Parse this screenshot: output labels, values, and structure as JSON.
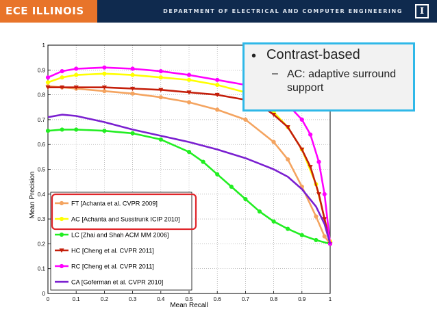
{
  "banner": {
    "logo_text": "ECE ILLINOIS",
    "department": "DEPARTMENT OF ELECTRICAL AND COMPUTER ENGINEERING",
    "mark": "I",
    "brand_color": "#0f2a4e",
    "accent_color": "#e8742a"
  },
  "callout": {
    "bullet": "•",
    "heading": "Contrast-based",
    "sub_dash": "–",
    "sub_text": "AC: adaptive surround support",
    "border_color": "#2fb8e8"
  },
  "chart_data": {
    "type": "line",
    "xlabel": "Mean Recall",
    "ylabel": "Mean Precision",
    "xlim": [
      0,
      1
    ],
    "ylim": [
      0,
      1
    ],
    "xticks": [
      "0",
      "0.1",
      "0.2",
      "0.3",
      "0.4",
      "0.5",
      "0.6",
      "0.7",
      "0.8",
      "0.9",
      "1"
    ],
    "yticks": [
      "0",
      "0.1",
      "0.2",
      "0.3",
      "0.4",
      "0.5",
      "0.6",
      "0.7",
      "0.8",
      "0.9",
      "1"
    ],
    "grid": true,
    "legend_position": "bottom-left",
    "legend_highlight_color": "#e0252a",
    "series": [
      {
        "name": "FT [Achanta et al. CVPR 2009]",
        "color": "#f4a460",
        "marker": "circle",
        "x": [
          0.0,
          0.05,
          0.1,
          0.2,
          0.3,
          0.4,
          0.5,
          0.6,
          0.7,
          0.8,
          0.85,
          0.9,
          0.95,
          0.98,
          1.0
        ],
        "y": [
          0.835,
          0.83,
          0.825,
          0.815,
          0.805,
          0.79,
          0.77,
          0.74,
          0.7,
          0.61,
          0.54,
          0.43,
          0.31,
          0.23,
          0.2
        ]
      },
      {
        "name": "AC [Achanta and Susstrunk ICIP 2010]",
        "color": "#ffff00",
        "marker": "circle",
        "x": [
          0.0,
          0.05,
          0.1,
          0.2,
          0.3,
          0.4,
          0.5,
          0.6,
          0.7,
          0.75,
          0.8,
          0.85,
          0.9,
          0.95,
          1.0
        ],
        "y": [
          0.85,
          0.87,
          0.88,
          0.885,
          0.88,
          0.87,
          0.86,
          0.84,
          0.81,
          0.78,
          0.73,
          0.67,
          0.58,
          0.44,
          0.21
        ]
      },
      {
        "name": "LC [Zhai and Shah ACM MM 2006]",
        "color": "#22ee22",
        "marker": "circle",
        "x": [
          0.0,
          0.05,
          0.1,
          0.2,
          0.3,
          0.4,
          0.5,
          0.55,
          0.6,
          0.65,
          0.7,
          0.75,
          0.8,
          0.85,
          0.9,
          0.95,
          1.0
        ],
        "y": [
          0.655,
          0.66,
          0.66,
          0.655,
          0.645,
          0.62,
          0.57,
          0.53,
          0.48,
          0.43,
          0.38,
          0.33,
          0.29,
          0.26,
          0.235,
          0.215,
          0.2
        ]
      },
      {
        "name": "HC [Cheng et al. CVPR 2011]",
        "color": "#c41e0a",
        "marker": "triangle",
        "x": [
          0.0,
          0.05,
          0.1,
          0.2,
          0.3,
          0.4,
          0.5,
          0.6,
          0.7,
          0.75,
          0.8,
          0.85,
          0.9,
          0.93,
          0.96,
          0.98,
          1.0
        ],
        "y": [
          0.83,
          0.83,
          0.83,
          0.83,
          0.825,
          0.82,
          0.81,
          0.8,
          0.78,
          0.76,
          0.72,
          0.67,
          0.58,
          0.51,
          0.4,
          0.3,
          0.2
        ]
      },
      {
        "name": "RC [Cheng et al. CVPR 2011]",
        "color": "#ff00ff",
        "marker": "circle",
        "x": [
          0.0,
          0.05,
          0.1,
          0.2,
          0.3,
          0.4,
          0.5,
          0.6,
          0.7,
          0.75,
          0.8,
          0.85,
          0.9,
          0.93,
          0.96,
          0.98,
          1.0
        ],
        "y": [
          0.87,
          0.895,
          0.905,
          0.91,
          0.905,
          0.895,
          0.88,
          0.86,
          0.84,
          0.82,
          0.8,
          0.76,
          0.7,
          0.64,
          0.53,
          0.4,
          0.2
        ]
      },
      {
        "name": "CA [Goferman et al. CVPR 2010]",
        "color": "#7a1fd0",
        "marker": "none",
        "x": [
          0.0,
          0.05,
          0.1,
          0.2,
          0.3,
          0.4,
          0.5,
          0.6,
          0.7,
          0.8,
          0.85,
          0.9,
          0.95,
          0.98,
          1.0
        ],
        "y": [
          0.71,
          0.72,
          0.715,
          0.69,
          0.66,
          0.635,
          0.61,
          0.58,
          0.545,
          0.5,
          0.47,
          0.42,
          0.35,
          0.28,
          0.2
        ]
      }
    ]
  }
}
